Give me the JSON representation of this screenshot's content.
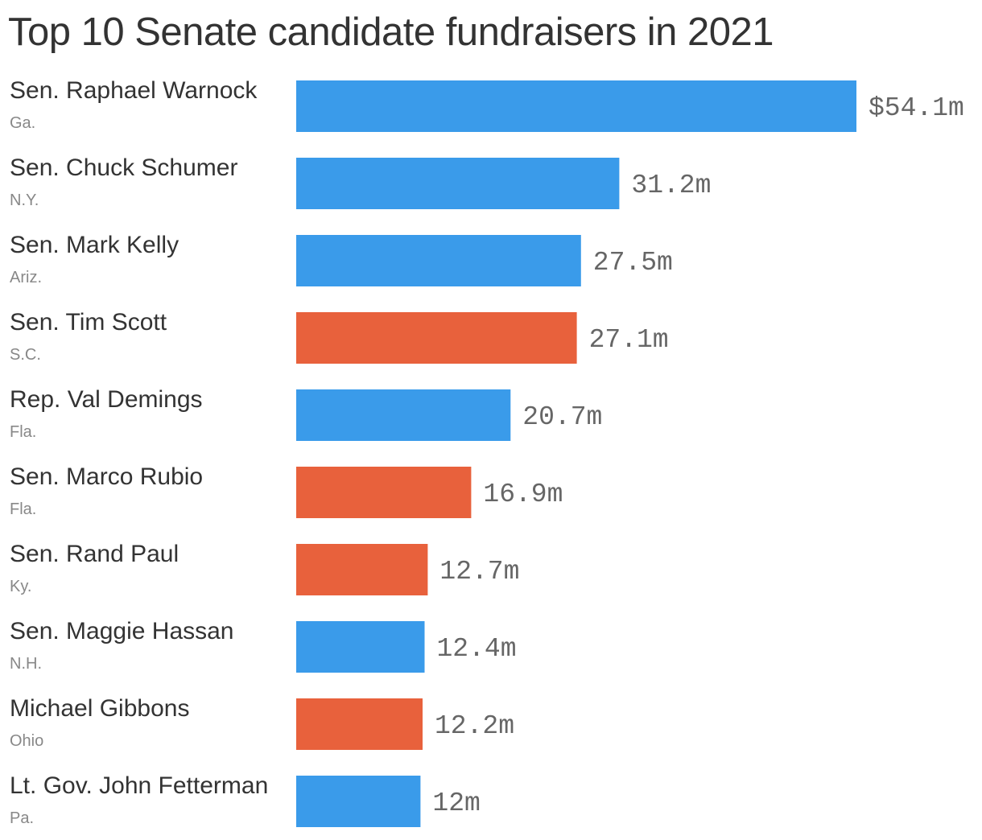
{
  "chart_data": {
    "type": "bar",
    "orientation": "horizontal",
    "title": "Top 10 Senate candidate fundraisers in 2021",
    "categories": [
      "Sen. Raphael Warnock",
      "Sen. Chuck Schumer",
      "Sen. Mark Kelly",
      "Sen. Tim Scott",
      "Rep. Val Demings",
      "Sen. Marco Rubio",
      "Sen. Rand Paul",
      "Sen. Maggie Hassan",
      "Michael Gibbons",
      "Lt. Gov. John Fetterman"
    ],
    "states": [
      "Ga.",
      "N.Y.",
      "Ariz.",
      "S.C.",
      "Fla.",
      "Fla.",
      "Ky.",
      "N.H.",
      "Ohio",
      "Pa."
    ],
    "values": [
      54.1,
      31.2,
      27.5,
      27.1,
      20.7,
      16.9,
      12.7,
      12.4,
      12.2,
      12
    ],
    "value_labels": [
      "$54.1m",
      "31.2m",
      "27.5m",
      "27.1m",
      "20.7m",
      "16.9m",
      "12.7m",
      "12.4m",
      "12.2m",
      "12m"
    ],
    "party_colors": [
      "#3a9bea",
      "#3a9bea",
      "#3a9bea",
      "#e8613c",
      "#3a9bea",
      "#e8613c",
      "#e8613c",
      "#3a9bea",
      "#e8613c",
      "#3a9bea"
    ],
    "xlim": [
      0,
      54.1
    ],
    "grid": false,
    "legend": "none"
  }
}
